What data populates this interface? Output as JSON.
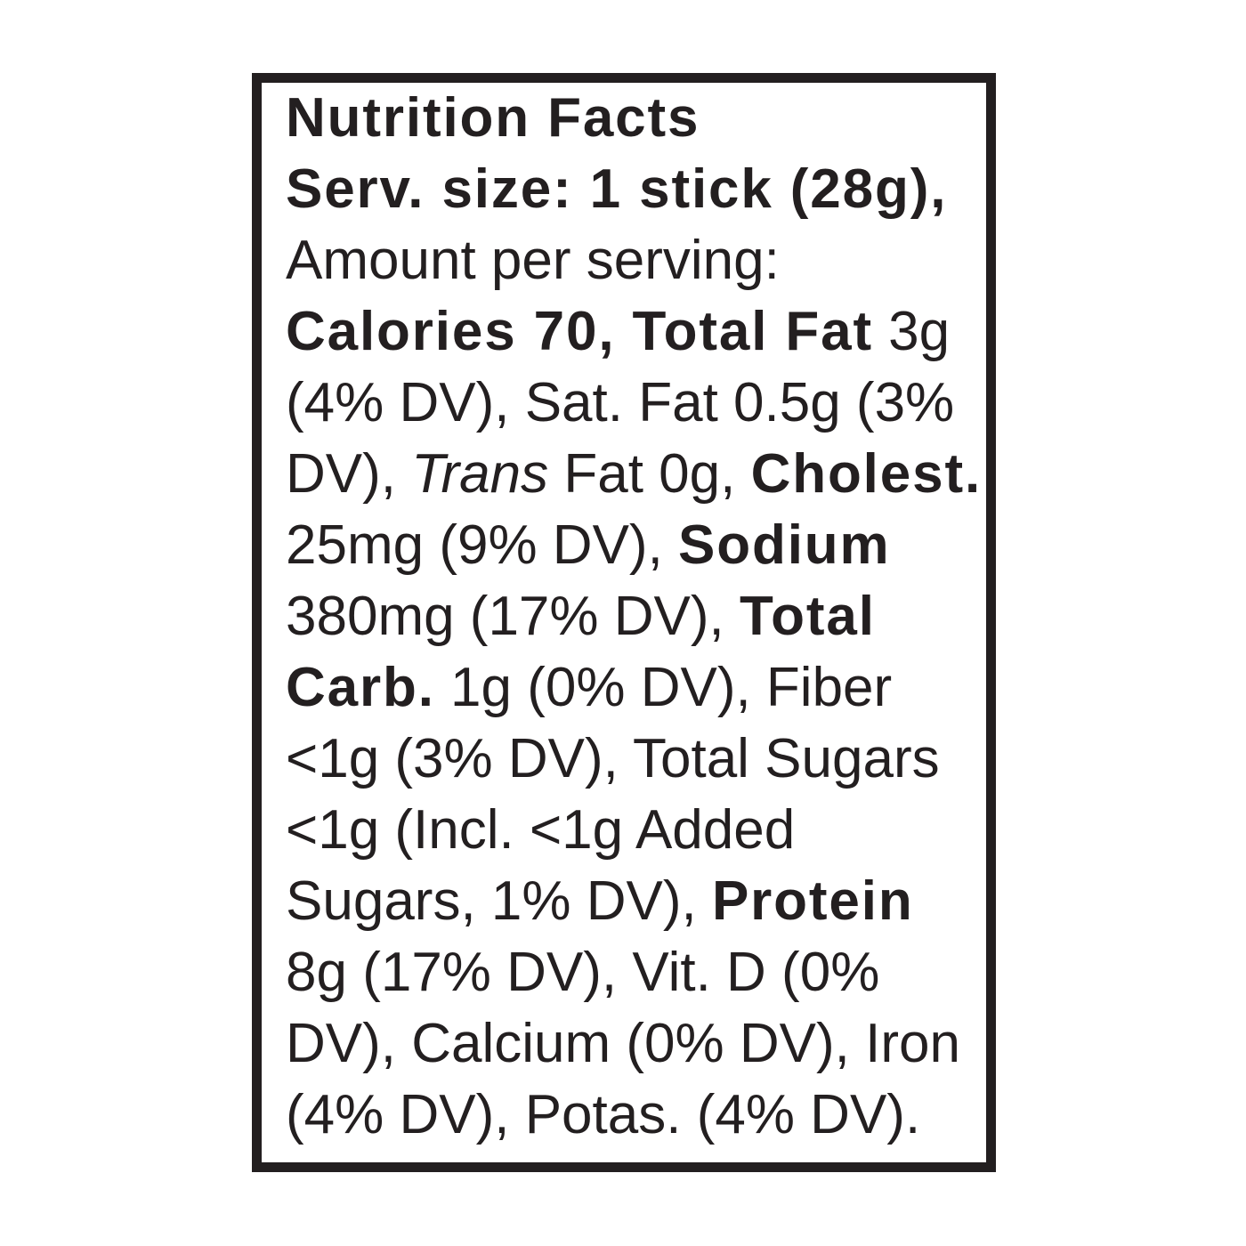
{
  "label": {
    "title": "Nutrition Facts",
    "colors": {
      "ink": "#231f20",
      "background": "#ffffff"
    },
    "lines": [
      {
        "segments": [
          {
            "text": "Nutrition Facts",
            "style": "bold"
          }
        ]
      },
      {
        "segments": [
          {
            "text": "Serv. size: 1 stick (28g),",
            "style": "bold"
          }
        ]
      },
      {
        "segments": [
          {
            "text": "Amount per serving:",
            "style": "regular"
          }
        ]
      },
      {
        "segments": [
          {
            "text": "Calories 70, Total Fat",
            "style": "bold"
          },
          {
            "text": " 3g",
            "style": "regular"
          }
        ]
      },
      {
        "segments": [
          {
            "text": "(4% DV), Sat. Fat 0.5g (3%",
            "style": "regular"
          }
        ]
      },
      {
        "segments": [
          {
            "text": "DV), ",
            "style": "regular"
          },
          {
            "text": "Trans",
            "style": "italic"
          },
          {
            "text": " Fat 0g, ",
            "style": "regular"
          },
          {
            "text": "Cholest.",
            "style": "bold"
          }
        ]
      },
      {
        "segments": [
          {
            "text": "25mg (9% DV), ",
            "style": "regular"
          },
          {
            "text": "Sodium",
            "style": "bold"
          }
        ]
      },
      {
        "segments": [
          {
            "text": "380mg (17% DV), ",
            "style": "regular"
          },
          {
            "text": "Total",
            "style": "bold"
          }
        ]
      },
      {
        "segments": [
          {
            "text": "Carb.",
            "style": "bold"
          },
          {
            "text": " 1g (0% DV), Fiber",
            "style": "regular"
          }
        ]
      },
      {
        "segments": [
          {
            "text": "<1g (3% DV), Total Sugars",
            "style": "regular"
          }
        ]
      },
      {
        "segments": [
          {
            "text": "<1g (Incl. <1g Added",
            "style": "regular"
          }
        ]
      },
      {
        "segments": [
          {
            "text": "Sugars, 1% DV), ",
            "style": "regular"
          },
          {
            "text": "Protein",
            "style": "bold"
          }
        ]
      },
      {
        "segments": [
          {
            "text": "8g (17% DV), Vit. D (0%",
            "style": "regular"
          }
        ]
      },
      {
        "segments": [
          {
            "text": "DV), Calcium (0% DV), Iron",
            "style": "regular"
          }
        ]
      },
      {
        "segments": [
          {
            "text": "(4% DV), Potas. (4% DV).",
            "style": "regular"
          }
        ]
      }
    ],
    "facts": {
      "serving_size": "1 stick (28g)",
      "amount_per_serving_label": "Amount per serving:",
      "calories": "70",
      "nutrients": [
        {
          "name": "Total Fat",
          "amount": "3g",
          "dv": "4% DV"
        },
        {
          "name": "Sat. Fat",
          "amount": "0.5g",
          "dv": "3% DV"
        },
        {
          "name": "Trans Fat",
          "amount": "0g",
          "dv": ""
        },
        {
          "name": "Cholest.",
          "amount": "25mg",
          "dv": "9% DV"
        },
        {
          "name": "Sodium",
          "amount": "380mg",
          "dv": "17% DV"
        },
        {
          "name": "Total Carb.",
          "amount": "1g",
          "dv": "0% DV"
        },
        {
          "name": "Fiber",
          "amount": "<1g",
          "dv": "3% DV"
        },
        {
          "name": "Total Sugars",
          "amount": "<1g",
          "dv": ""
        },
        {
          "name": "Incl. Added Sugars",
          "amount": "<1g",
          "dv": "1% DV"
        },
        {
          "name": "Protein",
          "amount": "8g",
          "dv": "17% DV"
        },
        {
          "name": "Vit. D",
          "amount": "",
          "dv": "0% DV"
        },
        {
          "name": "Calcium",
          "amount": "",
          "dv": "0% DV"
        },
        {
          "name": "Iron",
          "amount": "",
          "dv": "4% DV"
        },
        {
          "name": "Potas.",
          "amount": "",
          "dv": "4% DV"
        }
      ]
    }
  }
}
